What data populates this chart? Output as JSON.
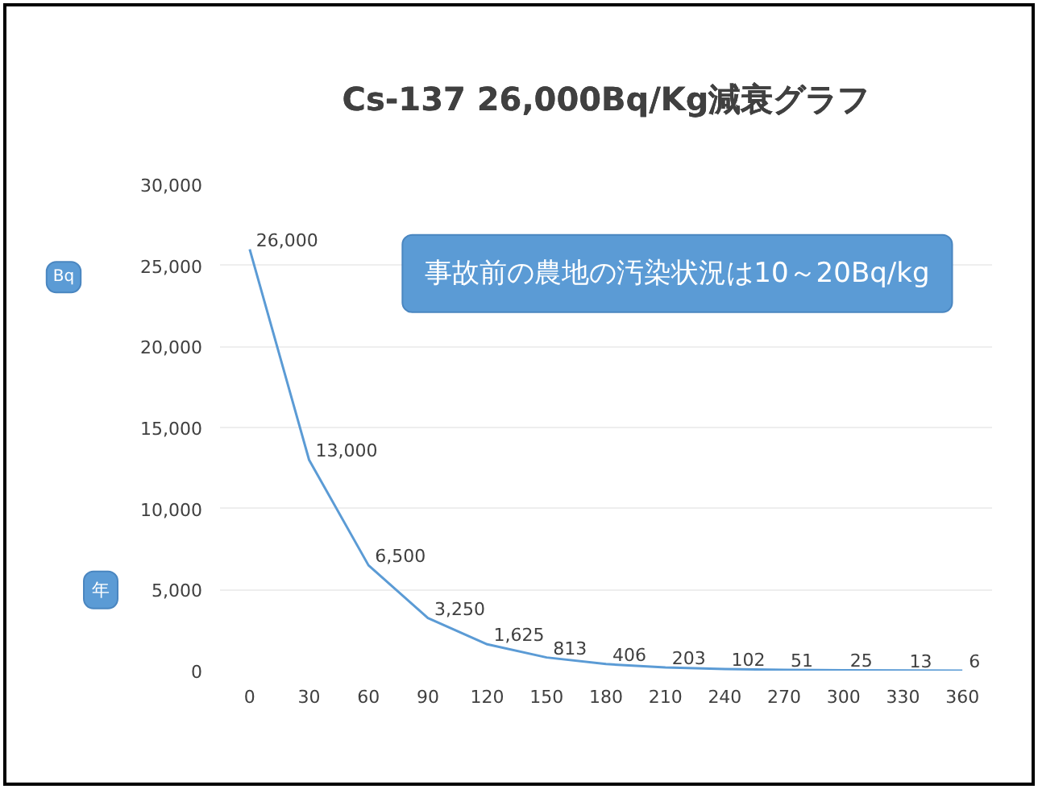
{
  "chart_data": {
    "type": "line",
    "title": "Cs-137 26,000Bq/Kg減衰グラフ",
    "xlabel": "年",
    "ylabel": "Bq",
    "categories": [
      "0",
      "30",
      "60",
      "90",
      "120",
      "150",
      "180",
      "210",
      "240",
      "270",
      "300",
      "330",
      "360"
    ],
    "series": [
      {
        "color": "#5b9bd5",
        "values": [
          26000,
          13000,
          6500,
          3250,
          1625,
          813,
          406,
          203,
          102,
          51,
          25,
          13,
          6
        ],
        "value_labels": [
          "26,000",
          "13,000",
          "6,500",
          "3,250",
          "1,625",
          "813",
          "406",
          "203",
          "102",
          "51",
          "25",
          "13",
          "6"
        ]
      }
    ],
    "ylim": [
      0,
      30000
    ],
    "yticks": [
      {
        "value": 0,
        "label": "0"
      },
      {
        "value": 5000,
        "label": "5,000"
      },
      {
        "value": 10000,
        "label": "10,000"
      },
      {
        "value": 15000,
        "label": "15,000"
      },
      {
        "value": 20000,
        "label": "20,000"
      },
      {
        "value": 25000,
        "label": "25,000"
      },
      {
        "value": 30000,
        "label": "30,000"
      }
    ],
    "annotations": [
      "事故前の農地の汚染状況は10～20Bq/kg"
    ],
    "grid": "y",
    "marker": "none",
    "line_style": "solid"
  }
}
